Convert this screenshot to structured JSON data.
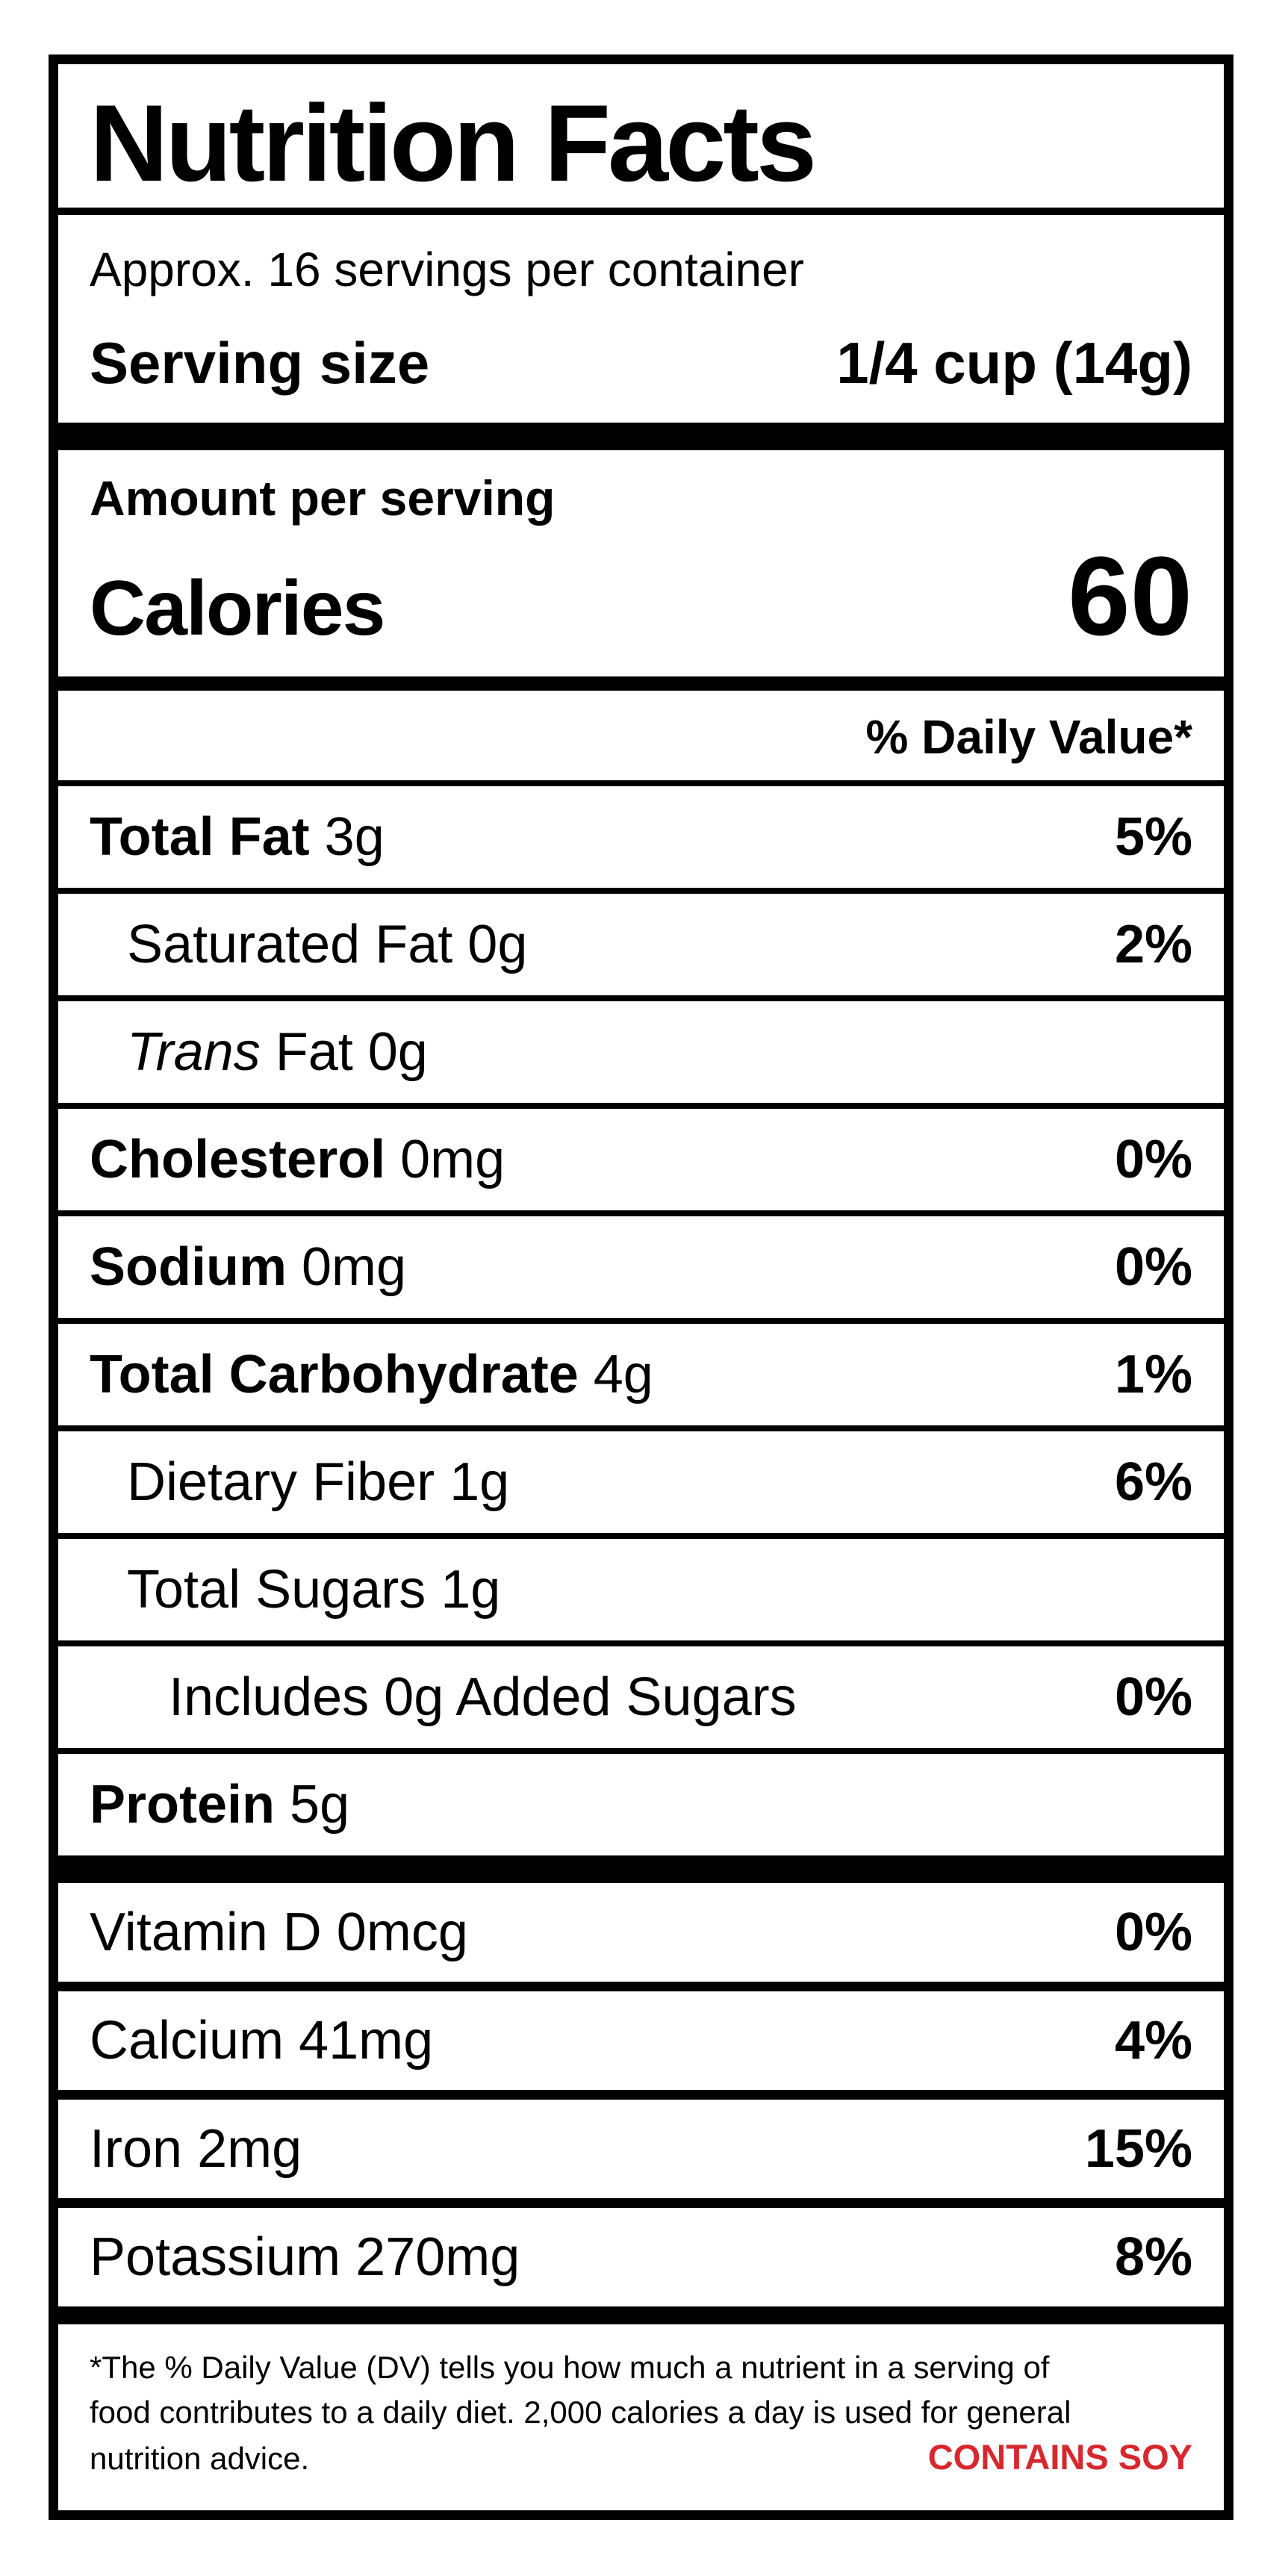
{
  "label": {
    "title": "Nutrition Facts",
    "servings_per_container": "Approx. 16 servings per container",
    "serving_size": {
      "label": "Serving size",
      "value": "1/4 cup (14g)"
    },
    "calories": {
      "header": "Amount per serving",
      "label": "Calories",
      "value": "60"
    },
    "daily_value_header": "% Daily Value*",
    "nutrients": [
      {
        "name": "Total Fat",
        "amount": "3g",
        "dv": "5%",
        "bold": true,
        "italic": false,
        "indent": 0
      },
      {
        "name": "Saturated Fat",
        "amount": "0g",
        "dv": "2%",
        "bold": false,
        "italic": false,
        "indent": 1
      },
      {
        "name": "Trans",
        "amount": "Fat 0g",
        "dv": "",
        "bold": false,
        "italic": true,
        "indent": 1
      },
      {
        "name": "Cholesterol",
        "amount": "0mg",
        "dv": "0%",
        "bold": true,
        "italic": false,
        "indent": 0
      },
      {
        "name": "Sodium",
        "amount": "0mg",
        "dv": "0%",
        "bold": true,
        "italic": false,
        "indent": 0
      },
      {
        "name": "Total Carbohydrate",
        "amount": "4g",
        "dv": "1%",
        "bold": true,
        "italic": false,
        "indent": 0
      },
      {
        "name": "Dietary Fiber",
        "amount": "1g",
        "dv": "6%",
        "bold": false,
        "italic": false,
        "indent": 1
      },
      {
        "name": "Total Sugars",
        "amount": "1g",
        "dv": "",
        "bold": false,
        "italic": false,
        "indent": 1
      },
      {
        "name": "Includes 0g Added Sugars",
        "amount": "",
        "dv": "0%",
        "bold": false,
        "italic": false,
        "indent": 2
      },
      {
        "name": "Protein",
        "amount": "5g",
        "dv": "",
        "bold": true,
        "italic": false,
        "indent": 0
      }
    ],
    "vitamins": [
      {
        "name": "Vitamin D",
        "amount": "0mcg",
        "dv": "0%"
      },
      {
        "name": "Calcium",
        "amount": "41mg",
        "dv": "4%"
      },
      {
        "name": "Iron",
        "amount": "2mg",
        "dv": "15%"
      },
      {
        "name": "Potassium",
        "amount": "270mg",
        "dv": "8%"
      }
    ],
    "footnote_lines": [
      "*The % Daily Value (DV) tells you how much a nutrient in a serving of",
      "food contributes to a daily diet. 2,000 calories a day is used for general",
      "nutrition advice."
    ],
    "allergen": "CONTAINS SOY",
    "colors": {
      "text": "#000000",
      "allergen_red": "#D7282E"
    }
  }
}
